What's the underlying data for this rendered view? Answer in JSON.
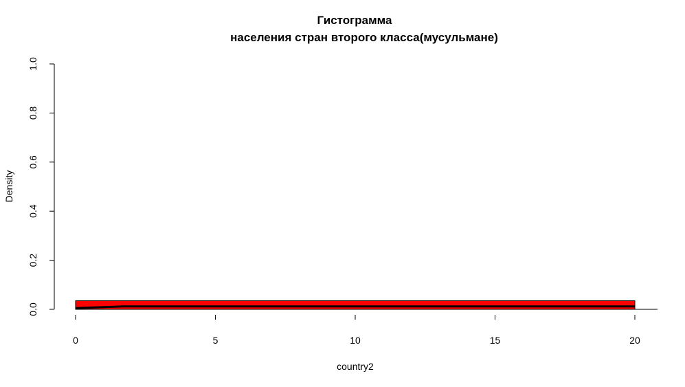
{
  "chart_data": {
    "type": "bar",
    "title": "Гистограмма",
    "subtitle": "населения стран второго класса(мусульмане)",
    "xlabel": "country2",
    "ylabel": "Density",
    "xlim": [
      0,
      20
    ],
    "ylim": [
      0,
      1
    ],
    "x_ticks": [
      0,
      5,
      10,
      15,
      20
    ],
    "y_ticks": [
      0.0,
      0.2,
      0.4,
      0.6,
      0.8,
      1.0
    ],
    "x_tick_labels": [
      "0",
      "5",
      "10",
      "15",
      "20"
    ],
    "y_tick_labels": [
      "0.0",
      "0.2",
      "0.4",
      "0.6",
      "0.8",
      "1.0"
    ],
    "bins": [
      {
        "start": 0,
        "end": 20,
        "density": 0.035
      }
    ],
    "density_line": {
      "x": [
        0,
        1.7,
        20
      ],
      "y": [
        0.005,
        0.012,
        0.012
      ]
    },
    "bar_color": "#ff0000",
    "line_color": "#000000"
  }
}
